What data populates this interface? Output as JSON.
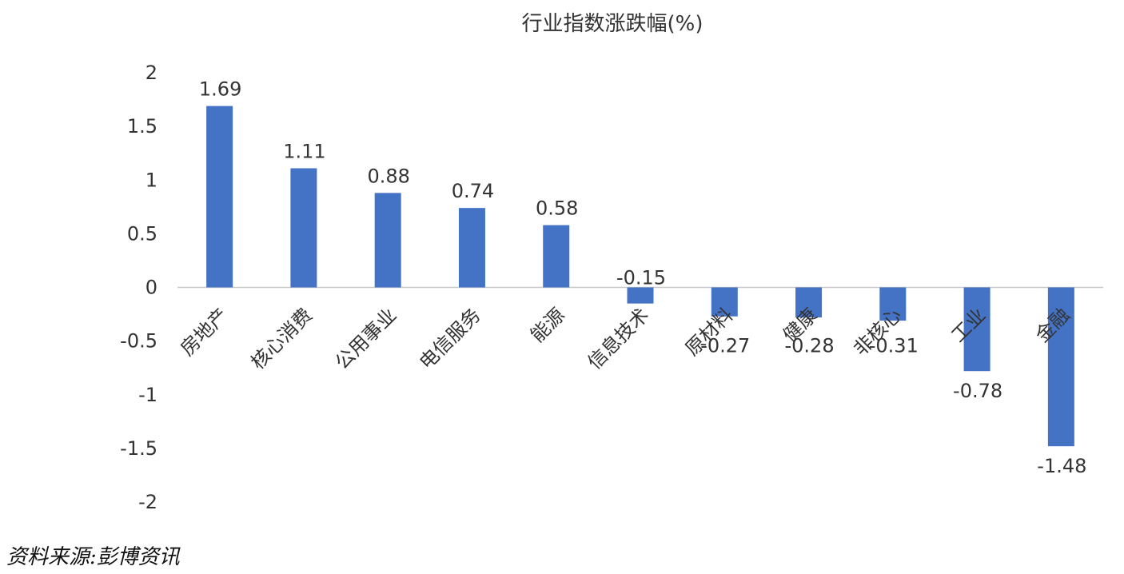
{
  "chart_data": {
    "type": "bar",
    "title": "行业指数涨跌幅(%)",
    "categories": [
      "房地产",
      "核心消费",
      "公用事业",
      "电信服务",
      "能源",
      "信息技术",
      "原材料",
      "健康",
      "非核心",
      "工业",
      "金融"
    ],
    "values": [
      1.69,
      1.11,
      0.88,
      0.74,
      0.58,
      -0.15,
      -0.27,
      -0.28,
      -0.31,
      -0.78,
      -1.48
    ],
    "data_labels": [
      "1.69",
      "1.11",
      "0.88",
      "0.74",
      "0.58",
      "-0.15",
      "-0.27",
      "-0.28",
      "-0.31",
      "-0.78",
      "-1.48"
    ],
    "ylim": [
      -2,
      2
    ],
    "yticks": [
      2,
      1.5,
      1,
      0.5,
      0,
      -0.5,
      -1,
      -1.5,
      -2
    ],
    "ytick_labels": [
      "2",
      "1.5",
      "1",
      "0.5",
      "0",
      "-0.5",
      "-1",
      "-1.5",
      "-2"
    ],
    "xlabel": "",
    "ylabel": "",
    "grid": false,
    "legend": "none",
    "bar_color": "#4472C4"
  },
  "source": "资料来源:彭博资讯"
}
